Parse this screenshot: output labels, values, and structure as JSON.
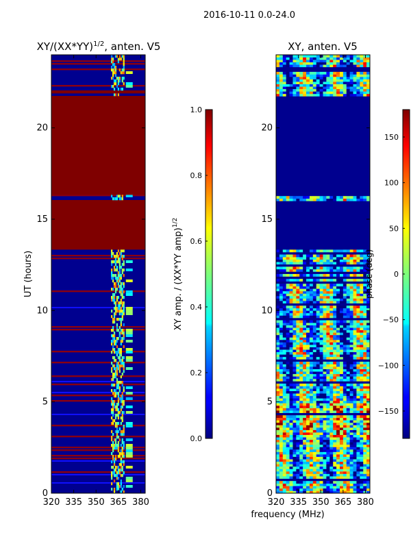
{
  "suptitle": "2016-10-11 0.0-24.0",
  "chart_data": [
    {
      "type": "heatmap",
      "title": "XY/(XX*YY)",
      "title_superscript": "1/2",
      "title_suffix": ", anten. V5",
      "xlabel": "",
      "ylabel": "UT (hours)",
      "xlim": [
        320,
        383
      ],
      "ylim": [
        0,
        24
      ],
      "xticks": [
        "320",
        "335",
        "350",
        "365",
        "380"
      ],
      "xtick_values": [
        320,
        335,
        350,
        365,
        380
      ],
      "yticks": [
        "0",
        "5",
        "10",
        "15",
        "20"
      ],
      "ytick_values": [
        0,
        5,
        10,
        15,
        20
      ],
      "colorbar": {
        "label_main": "XY amp. / (XX*YY amp)",
        "label_superscript": "1/2",
        "range": [
          0.0,
          1.0
        ],
        "ticks": [
          "0.0",
          "0.2",
          "0.4",
          "0.6",
          "0.8",
          "1.0"
        ],
        "tick_values": [
          0,
          0.2,
          0.4,
          0.6,
          0.8,
          1.0
        ]
      },
      "saturated_bands_hours": [
        [
          13.3,
          16.0
        ],
        [
          16.4,
          21.7
        ],
        [
          21.85,
          22.1
        ]
      ],
      "bright_frequency_band_mhz": [
        360,
        369
      ]
    },
    {
      "type": "heatmap",
      "title": "XY, anten. V5",
      "xlabel": "frequency (MHz)",
      "ylabel": "",
      "xlim": [
        320,
        383
      ],
      "ylim": [
        0,
        24
      ],
      "xticks": [
        "320",
        "335",
        "350",
        "365",
        "380"
      ],
      "xtick_values": [
        320,
        335,
        350,
        365,
        380
      ],
      "yticks": [
        "0",
        "5",
        "10",
        "15",
        "20"
      ],
      "ytick_values": [
        0,
        5,
        10,
        15,
        20
      ],
      "colorbar": {
        "label_main": "phase (deg)",
        "range": [
          -180,
          180
        ],
        "ticks": [
          "−150",
          "−100",
          "−50",
          "0",
          "50",
          "100",
          "150"
        ],
        "tick_values": [
          -150,
          -100,
          -50,
          0,
          50,
          100,
          150
        ]
      },
      "flat_bands_hours": [
        [
          16.4,
          21.7
        ],
        [
          13.3,
          16.0
        ]
      ]
    }
  ]
}
